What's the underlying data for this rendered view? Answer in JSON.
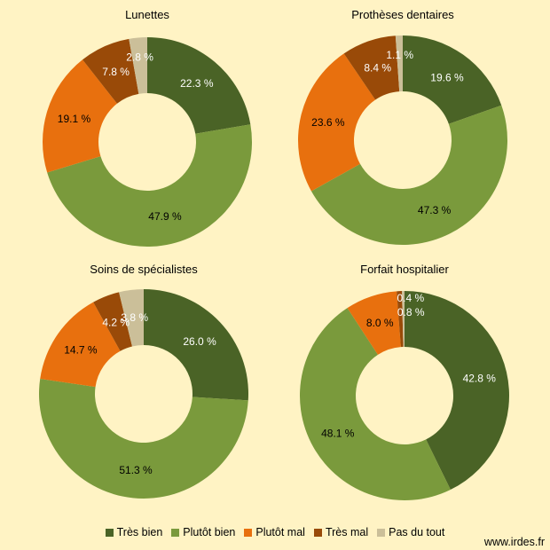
{
  "chart_data": [
    {
      "type": "pie",
      "title": "Lunettes",
      "values": [
        22.3,
        47.9,
        19.1,
        7.8,
        2.8
      ],
      "labels": [
        "22.3 %",
        "47.9 %",
        "19.1 %",
        "7.8 %",
        "2.8 %"
      ]
    },
    {
      "type": "pie",
      "title": "Prothèses dentaires",
      "values": [
        19.6,
        47.3,
        23.6,
        8.4,
        1.1
      ],
      "labels": [
        "19.6 %",
        "47.3 %",
        "23.6 %",
        "8.4 %",
        "1.1 %"
      ]
    },
    {
      "type": "pie",
      "title": "Soins de spécialistes",
      "values": [
        26.0,
        51.3,
        14.7,
        4.2,
        3.8
      ],
      "labels": [
        "26.0 %",
        "51.3 %",
        "14.7 %",
        "4.2 %",
        "3.8 %"
      ]
    },
    {
      "type": "pie",
      "title": "Forfait hospitalier",
      "values": [
        42.8,
        48.1,
        8.0,
        0.8,
        0.4
      ],
      "labels": [
        "42.8 %",
        "48.1 %",
        "8.0 %",
        "0.8 %",
        "0.4 %"
      ]
    }
  ],
  "legend": {
    "placement": "bottom",
    "items": [
      {
        "label": "Très bien",
        "color": "#4a6326"
      },
      {
        "label": "Plutôt bien",
        "color": "#7a9a3c"
      },
      {
        "label": "Plutôt mal",
        "color": "#e8700e"
      },
      {
        "label": "Très mal",
        "color": "#994a08"
      },
      {
        "label": "Pas du tout",
        "color": "#cbbf99"
      }
    ]
  },
  "label_colors": [
    "#ffffff",
    "#000000",
    "#000000",
    "#ffffff",
    "#ffffff"
  ],
  "source": "www.irdes.fr"
}
